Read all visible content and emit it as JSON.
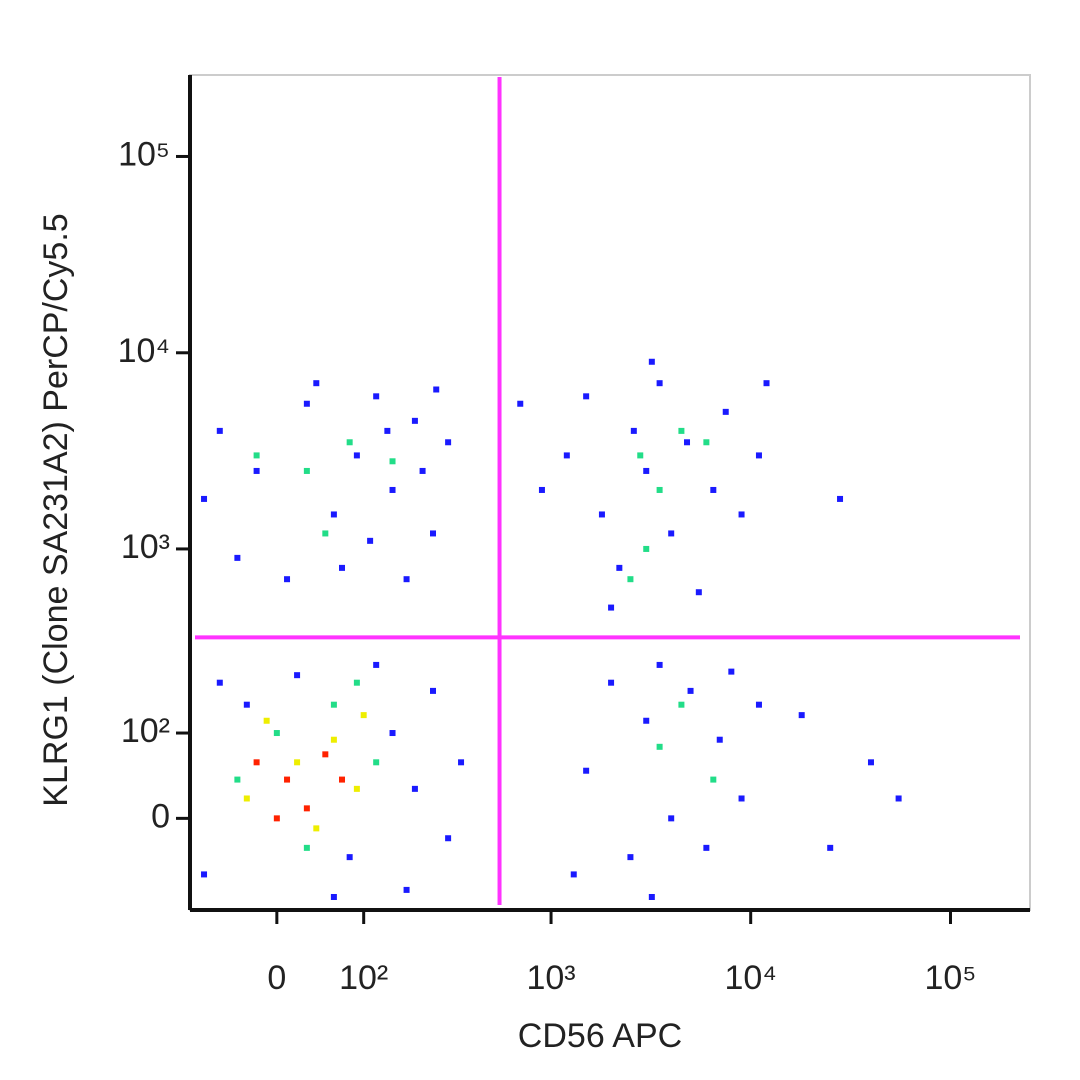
{
  "chart_data": {
    "type": "scatter",
    "xlabel": "CD56 APC",
    "ylabel": "KLRG1 (Clone SA231A2) PerCP/Cy5.5",
    "xscale": "biexponential",
    "yscale": "biexponential",
    "xlim": [
      -100,
      250000
    ],
    "ylim": [
      -110,
      260000
    ],
    "xticks": [
      0,
      {
        "value": 100,
        "label": "10²"
      },
      {
        "value": 1000,
        "label": "10³"
      },
      {
        "value": 10000,
        "label": "10⁴"
      },
      {
        "value": 100000,
        "label": "10⁵"
      }
    ],
    "yticks": [
      0,
      {
        "value": 100,
        "label": "10²"
      },
      {
        "value": 1000,
        "label": "10³"
      },
      {
        "value": 10000,
        "label": "10⁴"
      },
      {
        "value": 100000,
        "label": "10⁵"
      }
    ],
    "gate_x": 550,
    "gate_y": 350,
    "gate_color": "#ff33ff",
    "series": [
      {
        "color": "#1a1aff",
        "x": [
          -60,
          -20,
          30,
          60,
          90,
          120,
          150,
          200,
          250,
          -40,
          10,
          70,
          110,
          180,
          300,
          40,
          -80,
          140,
          220,
          260,
          1200,
          1500,
          1800,
          2200,
          2600,
          3000,
          3500,
          4000,
          4800,
          5500,
          6500,
          7500,
          9000,
          11000,
          700,
          900,
          2000,
          3200,
          12000,
          28000,
          -80,
          -30,
          20,
          80,
          150,
          200,
          250,
          300,
          -60,
          120,
          350,
          180,
          60,
          1500,
          2000,
          2500,
          3000,
          3500,
          4000,
          5000,
          6000,
          7000,
          8000,
          9000,
          11000,
          18000,
          40000,
          55000,
          25000,
          3200,
          1300
        ],
        "y": [
          4000,
          2500,
          5500,
          1500,
          3000,
          6000,
          2000,
          4500,
          1200,
          900,
          700,
          800,
          1100,
          700,
          3500,
          7000,
          1800,
          4000,
          2500,
          6500,
          3000,
          6000,
          1500,
          800,
          4000,
          2500,
          7000,
          1200,
          3500,
          600,
          2000,
          5000,
          1500,
          3000,
          5500,
          2000,
          500,
          9000,
          7000,
          1800,
          -60,
          150,
          220,
          -40,
          100,
          30,
          180,
          -20,
          200,
          250,
          60,
          -80,
          -90,
          50,
          200,
          -40,
          120,
          250,
          0,
          180,
          -30,
          90,
          230,
          20,
          150,
          130,
          60,
          20,
          -30,
          -90,
          -60
        ]
      },
      {
        "color": "#22dd88",
        "x": [
          30,
          80,
          -20,
          150,
          50,
          2800,
          3500,
          4500,
          3000,
          6000,
          2500,
          0,
          60,
          -40,
          120,
          30,
          90,
          3500,
          4500,
          6500
        ],
        "y": [
          2500,
          3500,
          3000,
          2800,
          1200,
          3000,
          2000,
          4000,
          1000,
          3500,
          700,
          100,
          150,
          40,
          60,
          -30,
          200,
          80,
          150,
          40
        ]
      },
      {
        "color": "#eeee00",
        "x": [
          20,
          60,
          -10,
          90,
          40,
          100,
          -30
        ],
        "y": [
          60,
          90,
          120,
          30,
          -10,
          130,
          20
        ]
      },
      {
        "color": "#ff2200",
        "x": [
          10,
          30,
          50,
          0,
          -20,
          70
        ],
        "y": [
          40,
          10,
          70,
          0,
          60,
          40
        ]
      }
    ]
  }
}
